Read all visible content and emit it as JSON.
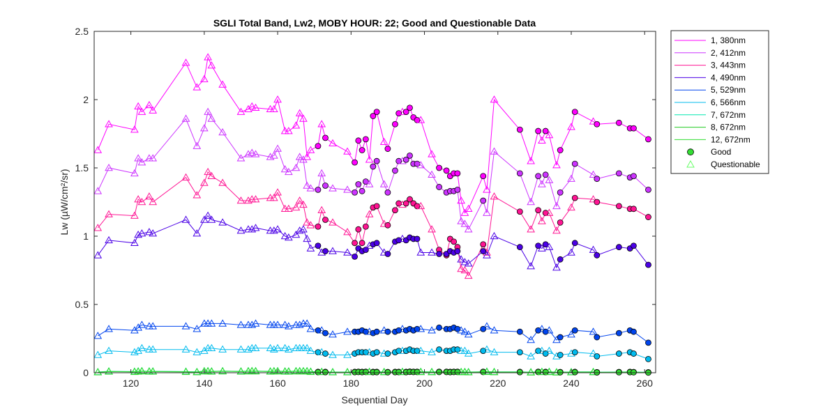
{
  "chart_data": {
    "type": "line",
    "title": "SGLI Total Band,  Lw2, MOBY HOUR: 22;  Good and Questionable Data",
    "xlabel": "Sequential Day",
    "ylabel": "Lw (µW/cm²/sr)",
    "xlim": [
      110,
      263
    ],
    "ylim": [
      0,
      2.5
    ],
    "xticks": [
      120,
      140,
      160,
      180,
      200,
      220,
      240,
      260
    ],
    "yticks": [
      0,
      0.5,
      1,
      1.5,
      2,
      2.5
    ],
    "ytick_labels": [
      "0",
      "0.5",
      "1",
      "1.5",
      "2",
      "2.5"
    ],
    "grid": false,
    "legend_position": "outside-right",
    "x": [
      111,
      114,
      121,
      122,
      123,
      125,
      126,
      135,
      138,
      140,
      141,
      142,
      145,
      150,
      152,
      153,
      154,
      158,
      159,
      160,
      162,
      163,
      165,
      166,
      167,
      168,
      169,
      171,
      172,
      173,
      175,
      179,
      181,
      182,
      183,
      184,
      185,
      186,
      187,
      189,
      190,
      192,
      193,
      194,
      195,
      196,
      197,
      198,
      199,
      202,
      204,
      206,
      207,
      208,
      209,
      210,
      211,
      212,
      216,
      217,
      219,
      226,
      229,
      231,
      232,
      233,
      234,
      236,
      237,
      240,
      241,
      246,
      247,
      253,
      256,
      257,
      261
    ],
    "quality": [
      "Q",
      "Q",
      "Q",
      "Q",
      "Q",
      "Q",
      "Q",
      "Q",
      "Q",
      "Q",
      "Q",
      "Q",
      "Q",
      "Q",
      "Q",
      "Q",
      "Q",
      "Q",
      "Q",
      "Q",
      "Q",
      "Q",
      "Q",
      "Q",
      "Q",
      "Q",
      "Q",
      "G",
      "Q",
      "G",
      "Q",
      "Q",
      "G",
      "G",
      "G",
      "G",
      "Q",
      "G",
      "G",
      "Q",
      "G",
      "G",
      "G",
      "Q",
      "G",
      "G",
      "G",
      "G",
      "Q",
      "Q",
      "G",
      "G",
      "G",
      "G",
      "G",
      "Q",
      "Q",
      "Q",
      "G",
      "Q",
      "Q",
      "G",
      "Q",
      "G",
      "Q",
      "G",
      "Q",
      "Q",
      "G",
      "Q",
      "G",
      "Q",
      "G",
      "G",
      "G",
      "G",
      "G"
    ],
    "series": [
      {
        "name": "1, 380nm",
        "color": "#ff00ff",
        "values": [
          1.63,
          1.82,
          1.78,
          1.95,
          1.91,
          1.96,
          1.92,
          2.27,
          2.09,
          2.15,
          2.31,
          2.25,
          2.11,
          1.91,
          1.93,
          1.95,
          1.94,
          1.93,
          1.93,
          2.0,
          1.77,
          1.77,
          1.81,
          1.9,
          1.86,
          1.58,
          1.63,
          1.66,
          1.82,
          1.72,
          1.68,
          1.62,
          1.54,
          1.7,
          1.63,
          1.71,
          1.56,
          1.88,
          1.91,
          1.69,
          1.64,
          1.82,
          1.9,
          1.91,
          1.91,
          1.94,
          1.87,
          1.85,
          1.85,
          1.6,
          1.5,
          1.48,
          1.44,
          1.46,
          1.46,
          1.26,
          1.17,
          1.2,
          1.44,
          1.34,
          2.0,
          1.78,
          1.55,
          1.77,
          1.7,
          1.77,
          1.74,
          1.52,
          1.63,
          1.8,
          1.91,
          1.84,
          1.82,
          1.83,
          1.79,
          1.79,
          1.71
        ]
      },
      {
        "name": "2, 412nm",
        "color": "#cc33ff",
        "values": [
          1.33,
          1.5,
          1.46,
          1.57,
          1.54,
          1.57,
          1.57,
          1.86,
          1.66,
          1.79,
          1.91,
          1.86,
          1.76,
          1.57,
          1.6,
          1.61,
          1.6,
          1.58,
          1.59,
          1.64,
          1.49,
          1.47,
          1.5,
          1.58,
          1.56,
          1.37,
          1.35,
          1.34,
          1.46,
          1.37,
          1.35,
          1.34,
          1.32,
          1.38,
          1.33,
          1.4,
          1.38,
          1.51,
          1.55,
          1.38,
          1.32,
          1.48,
          1.55,
          1.55,
          1.56,
          1.59,
          1.53,
          1.53,
          1.52,
          1.45,
          1.36,
          1.32,
          1.33,
          1.33,
          1.34,
          1.11,
          1.09,
          1.05,
          1.26,
          1.17,
          1.62,
          1.46,
          1.25,
          1.44,
          1.38,
          1.45,
          1.41,
          1.22,
          1.32,
          1.42,
          1.53,
          1.45,
          1.42,
          1.46,
          1.43,
          1.44,
          1.34
        ]
      },
      {
        "name": "3, 443nm",
        "color": "#ff1493",
        "values": [
          1.06,
          1.16,
          1.15,
          1.27,
          1.25,
          1.29,
          1.25,
          1.43,
          1.3,
          1.39,
          1.47,
          1.44,
          1.39,
          1.26,
          1.26,
          1.27,
          1.27,
          1.28,
          1.28,
          1.32,
          1.2,
          1.2,
          1.21,
          1.26,
          1.23,
          1.1,
          1.08,
          1.07,
          1.19,
          1.12,
          1.1,
          1.03,
          0.95,
          1.05,
          0.95,
          1.07,
          1.16,
          1.21,
          1.22,
          1.09,
          1.08,
          1.19,
          1.24,
          1.23,
          1.24,
          1.27,
          1.24,
          1.22,
          1.22,
          1.05,
          0.9,
          0.86,
          0.98,
          0.96,
          0.92,
          0.76,
          0.75,
          0.71,
          0.94,
          0.88,
          1.29,
          1.18,
          1.05,
          1.19,
          1.11,
          1.17,
          1.17,
          1.04,
          1.1,
          1.21,
          1.28,
          1.27,
          1.25,
          1.22,
          1.2,
          1.2,
          1.14
        ]
      },
      {
        "name": "4, 490nm",
        "color": "#4b00e6",
        "values": [
          0.86,
          0.97,
          0.95,
          1.01,
          1.02,
          1.03,
          1.02,
          1.12,
          1.02,
          1.12,
          1.15,
          1.12,
          1.1,
          1.04,
          1.05,
          1.05,
          1.06,
          1.04,
          1.04,
          1.05,
          1.0,
          0.99,
          1.01,
          1.04,
          1.05,
          0.98,
          0.91,
          0.93,
          0.88,
          0.89,
          0.89,
          0.88,
          0.85,
          0.91,
          0.89,
          0.9,
          0.93,
          0.94,
          0.95,
          0.88,
          0.87,
          0.96,
          0.97,
          0.98,
          0.97,
          0.99,
          0.98,
          0.98,
          0.88,
          0.88,
          0.87,
          0.87,
          0.89,
          0.88,
          0.89,
          0.83,
          0.81,
          0.8,
          0.89,
          0.86,
          1.0,
          0.92,
          0.78,
          0.93,
          0.91,
          0.94,
          0.92,
          0.77,
          0.83,
          0.88,
          0.95,
          0.9,
          0.86,
          0.92,
          0.91,
          0.93,
          0.79
        ]
      },
      {
        "name": "5, 529nm",
        "color": "#0044ee",
        "values": [
          0.27,
          0.32,
          0.31,
          0.33,
          0.35,
          0.34,
          0.34,
          0.34,
          0.32,
          0.36,
          0.36,
          0.36,
          0.36,
          0.35,
          0.35,
          0.35,
          0.36,
          0.35,
          0.35,
          0.35,
          0.35,
          0.34,
          0.35,
          0.35,
          0.36,
          0.36,
          0.32,
          0.31,
          0.31,
          0.29,
          0.28,
          0.3,
          0.3,
          0.3,
          0.31,
          0.3,
          0.3,
          0.29,
          0.3,
          0.31,
          0.3,
          0.3,
          0.31,
          0.32,
          0.31,
          0.32,
          0.31,
          0.32,
          0.32,
          0.31,
          0.33,
          0.32,
          0.32,
          0.33,
          0.32,
          0.31,
          0.3,
          0.28,
          0.32,
          0.34,
          0.31,
          0.3,
          0.24,
          0.31,
          0.32,
          0.3,
          0.31,
          0.24,
          0.26,
          0.28,
          0.31,
          0.3,
          0.26,
          0.29,
          0.31,
          0.3,
          0.22
        ]
      },
      {
        "name": "6, 566nm",
        "color": "#00bbee",
        "values": [
          0.13,
          0.16,
          0.15,
          0.16,
          0.18,
          0.17,
          0.17,
          0.17,
          0.15,
          0.16,
          0.18,
          0.18,
          0.17,
          0.17,
          0.17,
          0.18,
          0.18,
          0.18,
          0.17,
          0.18,
          0.18,
          0.17,
          0.18,
          0.18,
          0.18,
          0.18,
          0.16,
          0.15,
          0.15,
          0.14,
          0.13,
          0.13,
          0.14,
          0.15,
          0.15,
          0.15,
          0.15,
          0.14,
          0.15,
          0.14,
          0.14,
          0.15,
          0.16,
          0.16,
          0.16,
          0.17,
          0.16,
          0.16,
          0.16,
          0.15,
          0.17,
          0.16,
          0.16,
          0.17,
          0.17,
          0.16,
          0.16,
          0.14,
          0.16,
          0.17,
          0.15,
          0.15,
          0.12,
          0.16,
          0.16,
          0.14,
          0.16,
          0.12,
          0.13,
          0.14,
          0.15,
          0.14,
          0.12,
          0.14,
          0.15,
          0.14,
          0.1
        ]
      },
      {
        "name": "7, 672nm",
        "color": "#00e8b0",
        "values": [
          0.005,
          0.01,
          0.008,
          0.01,
          0.012,
          0.01,
          0.01,
          0.008,
          0.006,
          0.012,
          0.012,
          0.01,
          0.012,
          0.01,
          0.012,
          0.013,
          0.012,
          0.01,
          0.012,
          0.012,
          0.01,
          0.01,
          0.012,
          0.012,
          0.012,
          0.012,
          0.008,
          0.006,
          0.007,
          0.006,
          0.005,
          0.005,
          0.006,
          0.007,
          0.006,
          0.007,
          0.007,
          0.006,
          0.006,
          0.006,
          0.005,
          0.006,
          0.006,
          0.007,
          0.006,
          0.008,
          0.007,
          0.007,
          0.007,
          0.006,
          0.007,
          0.007,
          0.006,
          0.007,
          0.007,
          0.006,
          0.006,
          0.005,
          0.007,
          0.008,
          0.006,
          0.006,
          0.004,
          0.007,
          0.007,
          0.006,
          0.007,
          0.004,
          0.005,
          0.005,
          0.006,
          0.006,
          0.004,
          0.005,
          0.006,
          0.005,
          0.003
        ]
      },
      {
        "name": "8, 672nm",
        "color": "#22cc22",
        "values": [
          0.004,
          0.009,
          0.007,
          0.009,
          0.011,
          0.009,
          0.009,
          0.007,
          0.005,
          0.011,
          0.011,
          0.009,
          0.011,
          0.009,
          0.011,
          0.012,
          0.011,
          0.009,
          0.011,
          0.011,
          0.009,
          0.009,
          0.011,
          0.011,
          0.011,
          0.011,
          0.007,
          0.005,
          0.006,
          0.005,
          0.004,
          0.004,
          0.005,
          0.006,
          0.005,
          0.006,
          0.006,
          0.005,
          0.005,
          0.005,
          0.004,
          0.005,
          0.005,
          0.006,
          0.005,
          0.007,
          0.006,
          0.006,
          0.006,
          0.005,
          0.006,
          0.006,
          0.005,
          0.006,
          0.006,
          0.005,
          0.005,
          0.004,
          0.006,
          0.007,
          0.005,
          0.005,
          0.003,
          0.006,
          0.006,
          0.005,
          0.006,
          0.003,
          0.004,
          0.004,
          0.005,
          0.005,
          0.003,
          0.004,
          0.005,
          0.004,
          0.002
        ]
      },
      {
        "name": "12, 672nm",
        "color": "#33dd33",
        "values": [
          0.003,
          0.008,
          0.006,
          0.008,
          0.01,
          0.008,
          0.008,
          0.006,
          0.004,
          0.01,
          0.01,
          0.008,
          0.01,
          0.008,
          0.01,
          0.011,
          0.01,
          0.008,
          0.01,
          0.01,
          0.008,
          0.008,
          0.01,
          0.01,
          0.01,
          0.01,
          0.006,
          0.004,
          0.005,
          0.004,
          0.003,
          0.003,
          0.004,
          0.005,
          0.004,
          0.005,
          0.005,
          0.004,
          0.004,
          0.004,
          0.003,
          0.004,
          0.004,
          0.005,
          0.004,
          0.006,
          0.005,
          0.005,
          0.005,
          0.004,
          0.005,
          0.005,
          0.004,
          0.005,
          0.005,
          0.004,
          0.004,
          0.003,
          0.005,
          0.006,
          0.004,
          0.004,
          0.002,
          0.005,
          0.005,
          0.004,
          0.005,
          0.002,
          0.003,
          0.003,
          0.004,
          0.004,
          0.002,
          0.003,
          0.004,
          0.003,
          0.001
        ]
      }
    ],
    "legend": {
      "entries": [
        "1, 380nm",
        "2, 412nm",
        "3, 443nm",
        "4, 490nm",
        "5, 529nm",
        "6, 566nm",
        "7, 672nm",
        "8, 672nm",
        "12, 672nm"
      ],
      "good_label": "Good",
      "questionable_label": "Questionable",
      "good_color": "#33dd33",
      "questionable_color": "#66ff66"
    }
  }
}
